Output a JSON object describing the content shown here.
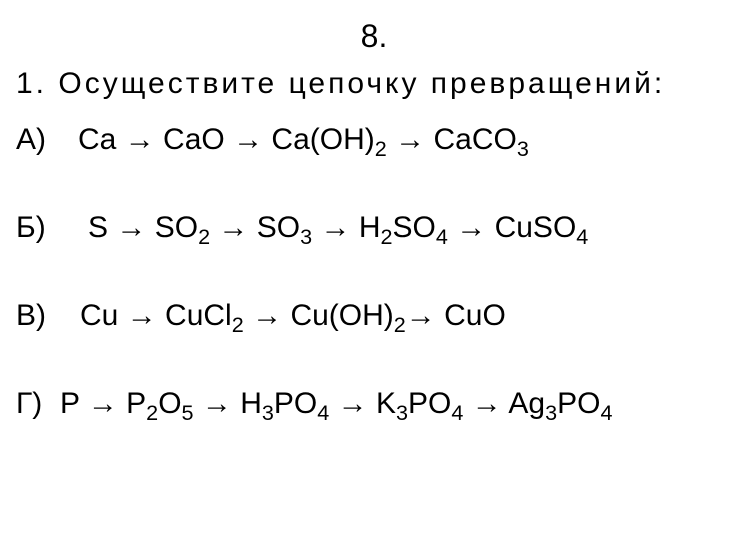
{
  "header": "8.",
  "instruction": "1. Осуществите  цепочку  превращений:",
  "arrow": "→",
  "chains": [
    {
      "label": "А)",
      "label_width": "62px",
      "items": [
        {
          "parts": [
            {
              "t": "Ca"
            }
          ]
        },
        {
          "parts": [
            {
              "t": "CaO"
            }
          ]
        },
        {
          "parts": [
            {
              "t": "Ca(OH)"
            },
            {
              "t": "2",
              "sub": true
            }
          ]
        },
        {
          "parts": [
            {
              "t": "CaCO"
            },
            {
              "t": "3",
              "sub": true
            }
          ]
        }
      ]
    },
    {
      "label": "Б)",
      "label_width": "72px",
      "items": [
        {
          "parts": [
            {
              "t": "S"
            }
          ]
        },
        {
          "parts": [
            {
              "t": "SO"
            },
            {
              "t": "2",
              "sub": true
            }
          ]
        },
        {
          "parts": [
            {
              "t": "SO"
            },
            {
              "t": "3",
              "sub": true
            }
          ]
        },
        {
          "parts": [
            {
              "t": "H"
            },
            {
              "t": "2",
              "sub": true
            },
            {
              "t": "SO"
            },
            {
              "t": "4",
              "sub": true
            }
          ]
        },
        {
          "parts": [
            {
              "t": "CuSO"
            },
            {
              "t": "4",
              "sub": true
            }
          ]
        }
      ]
    },
    {
      "label": "В)",
      "label_width": "64px",
      "items": [
        {
          "parts": [
            {
              "t": "Cu"
            }
          ]
        },
        {
          "parts": [
            {
              "t": "CuCl"
            },
            {
              "t": "2",
              "sub": true
            }
          ]
        },
        {
          "parts": [
            {
              "t": "Cu(OH)"
            },
            {
              "t": "2",
              "sub": true
            }
          ],
          "tight_after": true
        },
        {
          "parts": [
            {
              "t": "CuO"
            }
          ]
        }
      ]
    },
    {
      "label": "Г)",
      "label_width": "44px",
      "items": [
        {
          "parts": [
            {
              "t": "P"
            }
          ]
        },
        {
          "parts": [
            {
              "t": "P"
            },
            {
              "t": "2",
              "sub": true
            },
            {
              "t": "O"
            },
            {
              "t": "5",
              "sub": true
            }
          ]
        },
        {
          "parts": [
            {
              "t": "H"
            },
            {
              "t": "3",
              "sub": true
            },
            {
              "t": "PO"
            },
            {
              "t": "4",
              "sub": true
            }
          ]
        },
        {
          "parts": [
            {
              "t": "K"
            },
            {
              "t": "3",
              "sub": true
            },
            {
              "t": "PO"
            },
            {
              "t": "4",
              "sub": true
            }
          ]
        },
        {
          "parts": [
            {
              "t": "Ag"
            },
            {
              "t": "3",
              "sub": true
            },
            {
              "t": "PO"
            },
            {
              "t": "4",
              "sub": true
            }
          ]
        }
      ]
    }
  ],
  "styles": {
    "background_color": "#ffffff",
    "text_color": "#000000",
    "header_fontsize": 32,
    "instruction_fontsize": 30,
    "chain_fontsize": 30,
    "instruction_letter_spacing": 3,
    "chain_margin_bottom": 54
  }
}
